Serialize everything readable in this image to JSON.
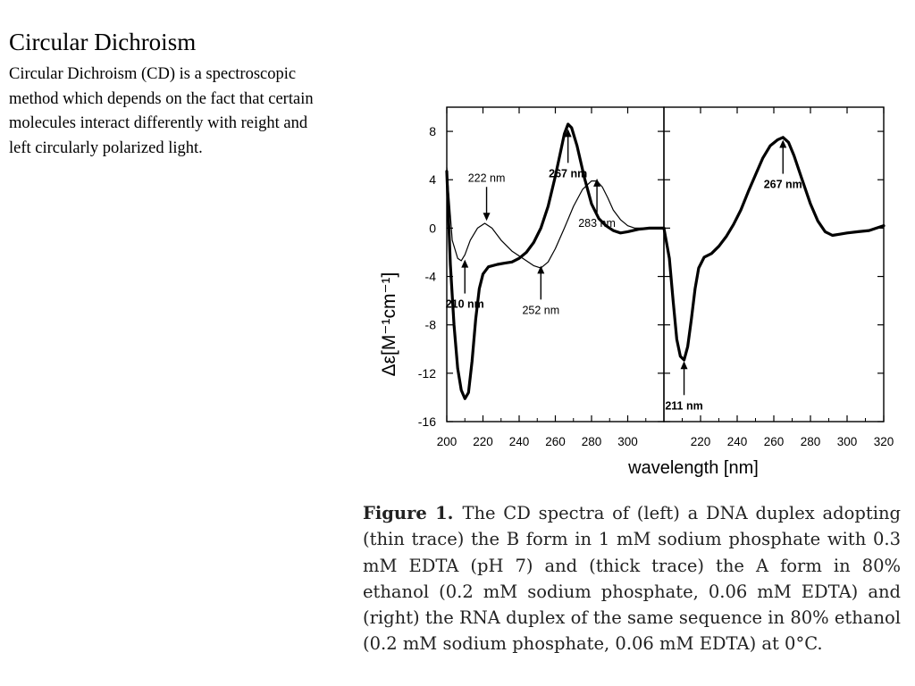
{
  "slide": {
    "title": "Circular Dichroism",
    "body": "Circular Dichroism (CD) is a spectroscopic method which depends on the fact that certain molecules interact differently with reight and left circularly polarized light."
  },
  "figure": {
    "caption_label": "Figure 1.",
    "caption_text": "The CD spectra of (left) a DNA duplex adopting (thin trace) the B form in 1 mM sodium phosphate with 0.3 mM EDTA (pH 7) and (thick trace) the A form in 80% ethanol (0.2 mM sodium phosphate, 0.06 mM EDTA) and (right) the RNA duplex of the same sequence in 80% ethanol (0.2 mM sodium phosphate, 0.06 mM EDTA) at 0°C."
  },
  "chart_data": [
    {
      "type": "line",
      "ylabel": "Δε[M⁻¹cm⁻¹]",
      "xlabel": "wavelength [nm]",
      "xlim": [
        200,
        320
      ],
      "ylim": [
        -16,
        10
      ],
      "xticks": [
        200,
        220,
        240,
        260,
        280,
        300
      ],
      "yticks": [
        8,
        4,
        0,
        -4,
        -8,
        -12,
        -16
      ],
      "series": [
        {
          "weight": "thin",
          "points": [
            [
              200,
              5
            ],
            [
              203,
              -1
            ],
            [
              206,
              -2.5
            ],
            [
              208,
              -2.7
            ],
            [
              210,
              -2.2
            ],
            [
              213,
              -1
            ],
            [
              217,
              0
            ],
            [
              221,
              0.4
            ],
            [
              225,
              0
            ],
            [
              230,
              -1
            ],
            [
              236,
              -1.9
            ],
            [
              242,
              -2.5
            ],
            [
              248,
              -3.1
            ],
            [
              252,
              -3.3
            ],
            [
              256,
              -2.8
            ],
            [
              260,
              -1.7
            ],
            [
              265,
              0
            ],
            [
              270,
              1.8
            ],
            [
              275,
              3.2
            ],
            [
              280,
              3.9
            ],
            [
              283,
              3.9
            ],
            [
              286,
              3.4
            ],
            [
              289,
              2.5
            ],
            [
              292,
              1.5
            ],
            [
              296,
              0.7
            ],
            [
              300,
              0.2
            ],
            [
              304,
              0
            ],
            [
              312,
              0
            ],
            [
              320,
              0
            ]
          ]
        },
        {
          "weight": "thick",
          "points": [
            [
              200,
              4.7
            ],
            [
              202,
              -3
            ],
            [
              204,
              -8
            ],
            [
              206,
              -11.6
            ],
            [
              208,
              -13.4
            ],
            [
              210,
              -14.1
            ],
            [
              212,
              -13.6
            ],
            [
              214,
              -11
            ],
            [
              216,
              -7.5
            ],
            [
              218,
              -5
            ],
            [
              220,
              -3.8
            ],
            [
              223,
              -3.2
            ],
            [
              228,
              -3
            ],
            [
              232,
              -2.9
            ],
            [
              236,
              -2.8
            ],
            [
              240,
              -2.5
            ],
            [
              244,
              -2
            ],
            [
              248,
              -1.2
            ],
            [
              252,
              0
            ],
            [
              256,
              1.8
            ],
            [
              260,
              4.3
            ],
            [
              263,
              6.4
            ],
            [
              265,
              7.8
            ],
            [
              267,
              8.6
            ],
            [
              269,
              8.3
            ],
            [
              272,
              6.8
            ],
            [
              276,
              4.2
            ],
            [
              280,
              2
            ],
            [
              284,
              0.8
            ],
            [
              288,
              0.2
            ],
            [
              292,
              -0.2
            ],
            [
              296,
              -0.4
            ],
            [
              300,
              -0.3
            ],
            [
              306,
              -0.1
            ],
            [
              312,
              0
            ],
            [
              320,
              0
            ]
          ]
        }
      ],
      "annotations": [
        {
          "text": "222 nm",
          "x": 222,
          "y": 0.6,
          "dir": "down",
          "bold": false
        },
        {
          "text": "267 nm",
          "x": 267,
          "y": 8.2,
          "dir": "up",
          "bold": true
        },
        {
          "text": "283 nm",
          "x": 283,
          "y": 4.1,
          "dir": "up",
          "bold": false
        },
        {
          "text": "210 nm",
          "x": 210,
          "y": -2.6,
          "dir": "up",
          "bold": true
        },
        {
          "text": "252 nm",
          "x": 252,
          "y": -3.1,
          "dir": "up",
          "bold": false
        }
      ]
    },
    {
      "type": "line",
      "ylabel": "Δε[M⁻¹cm⁻¹]",
      "xlabel": "wavelength [nm]",
      "xlim": [
        200,
        320
      ],
      "ylim": [
        -16,
        10
      ],
      "xticks": [
        220,
        240,
        260,
        280,
        300,
        320
      ],
      "series": [
        {
          "weight": "thick",
          "points": [
            [
              200,
              0
            ],
            [
              203,
              -2.5
            ],
            [
              205,
              -6
            ],
            [
              207,
              -9.2
            ],
            [
              209,
              -10.6
            ],
            [
              211,
              -10.9
            ],
            [
              213,
              -9.8
            ],
            [
              215,
              -7.5
            ],
            [
              217,
              -5
            ],
            [
              219,
              -3.3
            ],
            [
              222,
              -2.4
            ],
            [
              226,
              -2.1
            ],
            [
              230,
              -1.5
            ],
            [
              234,
              -0.7
            ],
            [
              238,
              0.3
            ],
            [
              242,
              1.5
            ],
            [
              246,
              3
            ],
            [
              250,
              4.4
            ],
            [
              254,
              5.8
            ],
            [
              258,
              6.8
            ],
            [
              262,
              7.3
            ],
            [
              265,
              7.5
            ],
            [
              268,
              7.1
            ],
            [
              271,
              6
            ],
            [
              275,
              4.2
            ],
            [
              280,
              2
            ],
            [
              284,
              0.6
            ],
            [
              288,
              -0.3
            ],
            [
              292,
              -0.6
            ],
            [
              296,
              -0.5
            ],
            [
              300,
              -0.4
            ],
            [
              306,
              -0.3
            ],
            [
              312,
              -0.2
            ],
            [
              316,
              0
            ],
            [
              320,
              0.2
            ]
          ]
        }
      ],
      "annotations": [
        {
          "text": "267 nm",
          "x": 265,
          "y": 7.3,
          "dir": "up",
          "bold": true
        },
        {
          "text": "211 nm",
          "x": 211,
          "y": -11,
          "dir": "up",
          "bold": true
        }
      ]
    }
  ]
}
